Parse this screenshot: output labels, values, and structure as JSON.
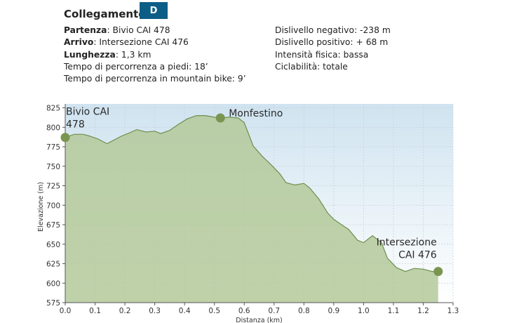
{
  "header": {
    "title": "Collegamento",
    "badge": "D"
  },
  "info_left": [
    {
      "label": "Partenza",
      "value": ": Bivio CAI 478",
      "bold": true
    },
    {
      "label": "Arrivo",
      "value": ": Intersezione CAI 476",
      "bold": true
    },
    {
      "label": "Lunghezza",
      "value": ": 1,3 km",
      "bold": true
    },
    {
      "label": "",
      "value": "Tempo di percorrenza a piedi: 18’",
      "bold": false
    },
    {
      "label": "",
      "value": "Tempo di percorrenza in mountain bike: 9’",
      "bold": false
    }
  ],
  "info_right": [
    "Dislivello negativo: -238 m",
    "Dislivello positivo: + 68 m",
    "Intensità fisica: bassa",
    "Ciclabilità: totale"
  ],
  "chart_data": {
    "type": "area",
    "xlabel": "Distanza (km)",
    "ylabel": "Elevazione (m)",
    "xlim": [
      0,
      1.3
    ],
    "ylim": [
      575,
      830
    ],
    "x_ticks": [
      0,
      0.1,
      0.2,
      0.3,
      0.4,
      0.5,
      0.6,
      0.7,
      0.8,
      0.9,
      1.0,
      1.1,
      1.2,
      1.3
    ],
    "x_tick_labels": [
      "0.0",
      "0.1",
      "0.2",
      "0.3",
      "0.4",
      "0.5",
      "0.6",
      "0.7",
      "0.8",
      "0.9",
      "1.0",
      "1.1",
      "1.2",
      "1.3"
    ],
    "y_ticks": [
      575,
      600,
      625,
      650,
      675,
      700,
      725,
      750,
      775,
      800,
      825
    ],
    "x": [
      0.0,
      0.03,
      0.06,
      0.08,
      0.11,
      0.14,
      0.16,
      0.19,
      0.21,
      0.24,
      0.27,
      0.3,
      0.32,
      0.35,
      0.38,
      0.41,
      0.44,
      0.47,
      0.5,
      0.52,
      0.55,
      0.58,
      0.6,
      0.63,
      0.66,
      0.69,
      0.72,
      0.74,
      0.77,
      0.8,
      0.82,
      0.85,
      0.88,
      0.9,
      0.93,
      0.95,
      0.98,
      1.0,
      1.03,
      1.06,
      1.08,
      1.11,
      1.14,
      1.17,
      1.2,
      1.23,
      1.25
    ],
    "y": [
      787,
      791,
      791,
      789,
      785,
      779,
      783,
      789,
      792,
      797,
      794,
      795,
      792,
      796,
      804,
      811,
      815,
      815,
      813,
      812,
      813,
      812,
      806,
      776,
      763,
      752,
      740,
      729,
      726,
      728,
      722,
      708,
      690,
      682,
      674,
      669,
      655,
      652,
      661,
      652,
      632,
      620,
      615,
      619,
      618,
      615,
      615
    ],
    "labeled_points": [
      {
        "name": "Bivio CAI 478",
        "x": 0.0,
        "y": 787
      },
      {
        "name": "Monfestino",
        "x": 0.52,
        "y": 812
      },
      {
        "name": "Intersezione CAI 476",
        "x": 1.25,
        "y": 615
      }
    ],
    "label_lines": [
      [
        "Bivio CAI",
        "478"
      ],
      [
        "Monfestino"
      ],
      [
        "Intersezione",
        "CAI 476"
      ]
    ],
    "colors": {
      "fill": "#b4c99a",
      "stroke": "#6f8f4e",
      "marker": "#7a9550",
      "sky_top": "#cfe3f0",
      "sky_bottom": "#ffffff"
    }
  }
}
